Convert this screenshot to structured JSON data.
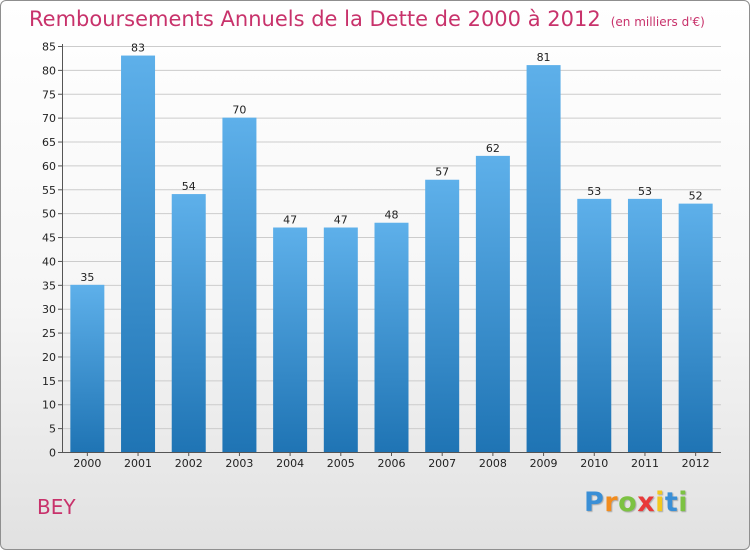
{
  "title": "Remboursements Annuels de la Dette de 2000 à 2012",
  "subtitle": "(en milliers d'€)",
  "place": "BEY",
  "logo": {
    "text": "Proxiti",
    "letters": [
      "P",
      "r",
      "o",
      "x",
      "i",
      "t",
      "i"
    ],
    "letter_colors": [
      "#3a8fd6",
      "#f28c1e",
      "#7cc242",
      "#e83a3a",
      "#f2c81e",
      "#3a8fd6",
      "#7cc242"
    ]
  },
  "colors": {
    "title": "#c8326b",
    "bar_top": "#5eb0ea",
    "bar_bottom": "#1f74b4",
    "grid": "#cccccc"
  },
  "chart_data": {
    "type": "bar",
    "categories": [
      "2000",
      "2001",
      "2002",
      "2003",
      "2004",
      "2005",
      "2006",
      "2007",
      "2008",
      "2009",
      "2010",
      "2011",
      "2012"
    ],
    "values": [
      35,
      83,
      54,
      70,
      47,
      47,
      48,
      57,
      62,
      81,
      53,
      53,
      52
    ],
    "ylim": [
      0,
      85
    ],
    "yticks": [
      0,
      5,
      10,
      15,
      20,
      25,
      30,
      35,
      40,
      45,
      50,
      55,
      60,
      65,
      70,
      75,
      80,
      85
    ],
    "grid": true,
    "data_labels": true
  }
}
